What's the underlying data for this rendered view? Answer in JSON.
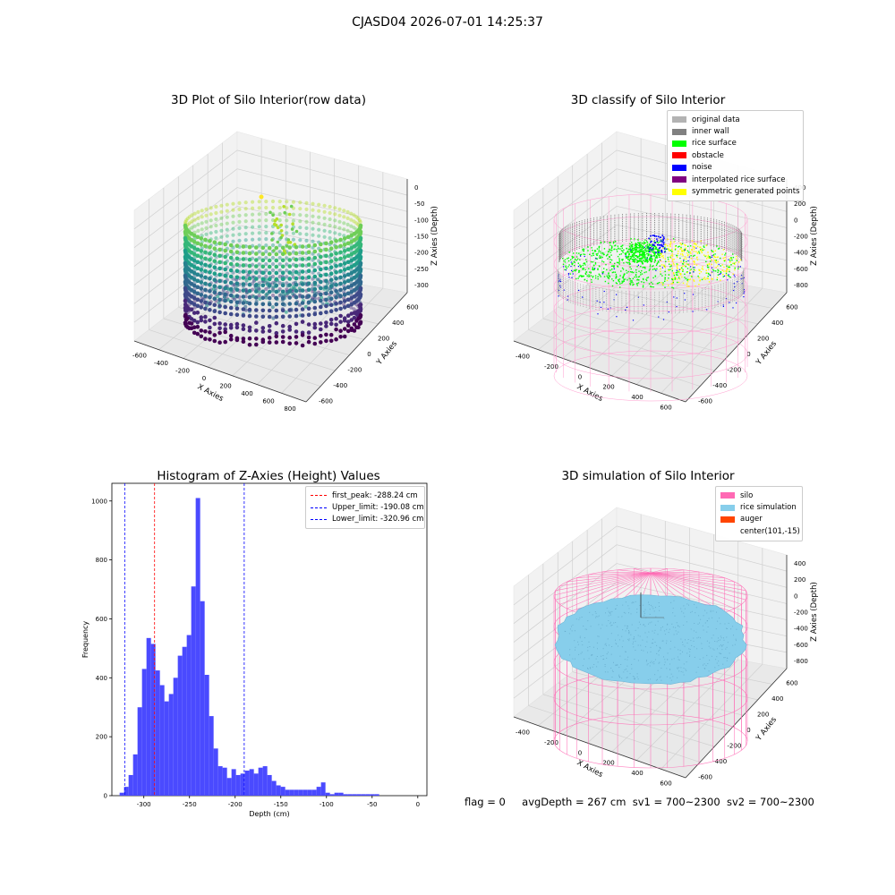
{
  "suptitle": "CJASD04 2026-07-01 14:25:37",
  "footer": {
    "flag": "flag = 0",
    "avg": "avgDepth = 267 cm",
    "sv1": "sv1 = 700~2300",
    "sv2": "sv2 = 700~2300"
  },
  "chart_data": [
    {
      "type": "scatter",
      "title": "3D Plot of Silo Interior(row data)",
      "xlabel": "X Axies",
      "ylabel": "Y Axies",
      "zlabel": "Z Axies (Depth)",
      "x_ticks": [
        "-600",
        "-400",
        "-200",
        "0",
        "200",
        "400",
        "600",
        "800"
      ],
      "y_ticks": [
        "-600",
        "-400",
        "-200",
        "0",
        "200",
        "400",
        "600"
      ],
      "z_ticks": [
        "0",
        "-50",
        "-100",
        "-150",
        "-200",
        "-250",
        "-300"
      ],
      "grid": true
    },
    {
      "type": "scatter",
      "title": "3D classify of Silo Interior",
      "xlabel": "X Axies",
      "ylabel": "Y Axies",
      "zlabel": "Z Axies (Depth)",
      "x_ticks": [
        "-400",
        "-200",
        "0",
        "200",
        "400",
        "600"
      ],
      "y_ticks": [
        "-600",
        "-400",
        "-200",
        "0",
        "200",
        "400",
        "600"
      ],
      "z_ticks": [
        "400",
        "200",
        "0",
        "-200",
        "-400",
        "-600",
        "-800"
      ],
      "legend": [
        {
          "label": "original data",
          "color": "#b3b3b3"
        },
        {
          "label": "inner wall",
          "color": "#808080"
        },
        {
          "label": "rice surface",
          "color": "#00ff00"
        },
        {
          "label": "obstacle",
          "color": "#ff0000"
        },
        {
          "label": "noise",
          "color": "#0000ff"
        },
        {
          "label": "interpolated rice surface",
          "color": "#800080"
        },
        {
          "label": "symmetric generated points",
          "color": "#ffff00"
        }
      ],
      "grid": true
    },
    {
      "type": "bar",
      "title": "Histogram of Z-Axies (Height) Values",
      "xlabel": "Depth (cm)",
      "ylabel": "Frequency",
      "xlim": [
        -335,
        10
      ],
      "ylim": [
        0,
        1060
      ],
      "x_ticks": [
        -300,
        -250,
        -200,
        -150,
        -100,
        -50,
        0
      ],
      "y_ticks": [
        0,
        200,
        400,
        600,
        800,
        1000
      ],
      "bar_color": "#4a4aff",
      "bins_start": -326.5,
      "bin_width": 4.9,
      "values": [
        10,
        30,
        70,
        140,
        300,
        430,
        535,
        515,
        425,
        375,
        320,
        345,
        400,
        475,
        505,
        545,
        710,
        1010,
        660,
        410,
        270,
        160,
        100,
        95,
        60,
        90,
        70,
        75,
        85,
        90,
        75,
        95,
        100,
        70,
        50,
        35,
        30,
        20,
        20,
        20,
        20,
        20,
        20,
        20,
        30,
        45,
        10,
        5,
        10,
        10,
        5,
        5,
        5,
        5,
        5,
        5,
        5,
        5
      ],
      "vlines": [
        {
          "x": -288.24,
          "color": "#ff0000",
          "label": "first_peak: -288.24 cm"
        },
        {
          "x": -190.08,
          "color": "#0000ff",
          "label": "Upper_limit: -190.08 cm"
        },
        {
          "x": -320.96,
          "color": "#0000ff",
          "label": "Lower_limit: -320.96 cm"
        }
      ],
      "grid": false
    },
    {
      "type": "scatter",
      "title": "3D simulation of Silo Interior",
      "xlabel": "X Axies",
      "ylabel": "Y Axies",
      "zlabel": "Z Axies (Depth)",
      "x_ticks": [
        "-400",
        "-200",
        "0",
        "200",
        "400",
        "600"
      ],
      "y_ticks": [
        "-600",
        "-400",
        "-200",
        "0",
        "200",
        "400",
        "600"
      ],
      "z_ticks": [
        "400",
        "200",
        "0",
        "-200",
        "-400",
        "-600",
        "-800"
      ],
      "legend": [
        {
          "label": "silo",
          "color": "#ff69b4"
        },
        {
          "label": "rice simulation",
          "color": "#87ceeb"
        },
        {
          "label": "auger",
          "color": "#ff4500"
        },
        {
          "label": "center(101,-15)",
          "color": ""
        }
      ],
      "grid": true
    }
  ]
}
